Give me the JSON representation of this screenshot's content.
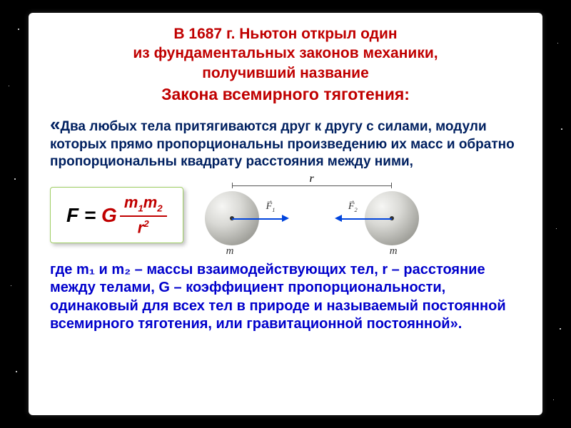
{
  "heading": {
    "line1": "В 1687 г. Ньютон открыл один",
    "line2": "из фундаментальных законов механики,",
    "line3": "получивший название",
    "line4": "Закона всемирного тяготения:"
  },
  "law_text": "Два любых тела притягиваются друг к другу с силами, модули которых прямо пропорциональны произведению их масс и обратно пропорциональны квадрату расстояния между ними,",
  "quote_open": "«",
  "formula": {
    "lhs_F": "F",
    "eq": " = ",
    "G": "G",
    "num": "m₁m₂",
    "den_base": "r",
    "den_exp": "2",
    "border_color": "#9fce63",
    "accent_color": "#c00000"
  },
  "diagram": {
    "r_label": "r",
    "F1_label": "F₁",
    "F2_label": "F₂",
    "m_label": "m",
    "sphere_color_stops": [
      "#f6f6f4",
      "#d9d9d5",
      "#9e9e98",
      "#6d6d66"
    ],
    "arrow_color": "#0044dd"
  },
  "closing_text": "где m₁ и m₂ – массы взаимодействующих тел, r – расстояние между телами, G – коэффициент пропорциональности, одинаковый для всех тел в природе и называемый постоянной всемирного тяготения, или гравитационной постоянной».",
  "colors": {
    "title": "#c00000",
    "law_text": "#002060",
    "closing": "#0000cc",
    "card_bg": "#ffffff",
    "page_bg": "#000000"
  },
  "typography": {
    "family": "Comic Sans MS",
    "title_size_pt": 16,
    "title_emph_size_pt": 17,
    "body_size_pt": 14,
    "closing_size_pt": 15
  }
}
